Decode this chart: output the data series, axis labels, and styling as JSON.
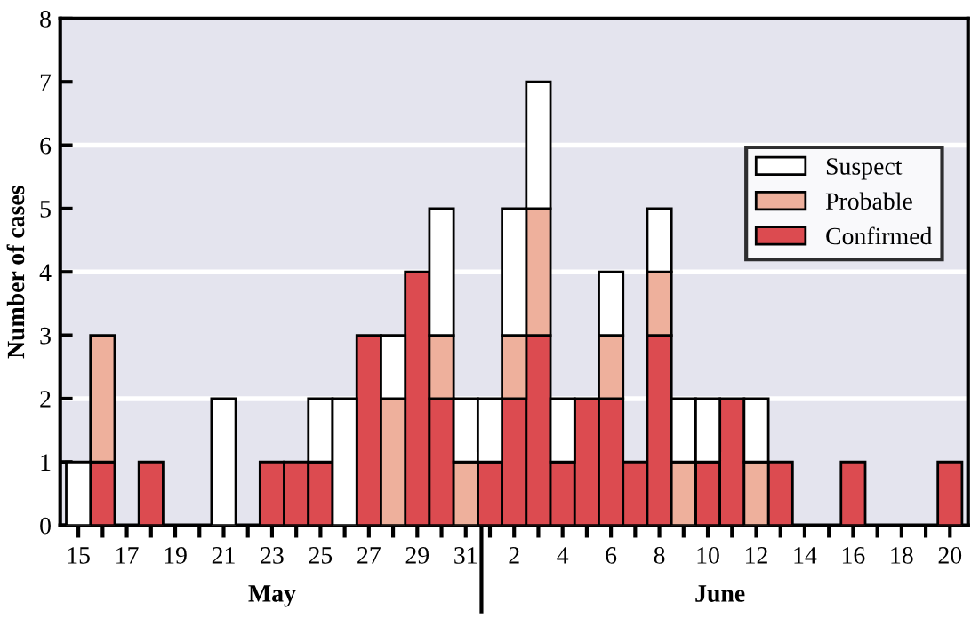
{
  "chart_data": {
    "type": "bar",
    "stacked": true,
    "ylabel": "Number of cases",
    "categories": [
      "15",
      null,
      "17",
      null,
      "19",
      null,
      "21",
      null,
      "23",
      null,
      "25",
      null,
      "27",
      null,
      "29",
      null,
      "31",
      null,
      "2",
      null,
      "4",
      null,
      "6",
      null,
      "8",
      null,
      "10",
      null,
      "12",
      null,
      "14",
      null,
      "16",
      null,
      "18",
      null,
      "20"
    ],
    "series": [
      {
        "name": "Confirmed",
        "color": "#dc4b50",
        "values": [
          0,
          1,
          0,
          1,
          0,
          0,
          0,
          0,
          1,
          1,
          1,
          0,
          3,
          0,
          4,
          2,
          0,
          1,
          2,
          3,
          1,
          2,
          2,
          1,
          3,
          0,
          1,
          2,
          0,
          1,
          0,
          0,
          1,
          0,
          0,
          0,
          1
        ]
      },
      {
        "name": "Probable",
        "color": "#eeb09c",
        "values": [
          0,
          2,
          0,
          0,
          0,
          0,
          0,
          0,
          0,
          0,
          0,
          0,
          0,
          2,
          0,
          1,
          1,
          0,
          1,
          2,
          0,
          0,
          1,
          0,
          1,
          1,
          0,
          0,
          1,
          0,
          0,
          0,
          0,
          0,
          0,
          0,
          0
        ]
      },
      {
        "name": "Suspect",
        "color": "#ffffff",
        "values": [
          1,
          0,
          0,
          0,
          0,
          0,
          2,
          0,
          0,
          0,
          1,
          2,
          0,
          1,
          0,
          2,
          1,
          1,
          2,
          2,
          1,
          0,
          1,
          0,
          1,
          1,
          1,
          0,
          1,
          0,
          0,
          0,
          0,
          0,
          0,
          0,
          0
        ]
      }
    ],
    "ylim": [
      0,
      8
    ],
    "yticks": [
      0,
      1,
      2,
      3,
      4,
      5,
      6,
      7,
      8
    ],
    "grid": "y",
    "legend": "top right",
    "annotations": [
      "May",
      "June"
    ]
  }
}
